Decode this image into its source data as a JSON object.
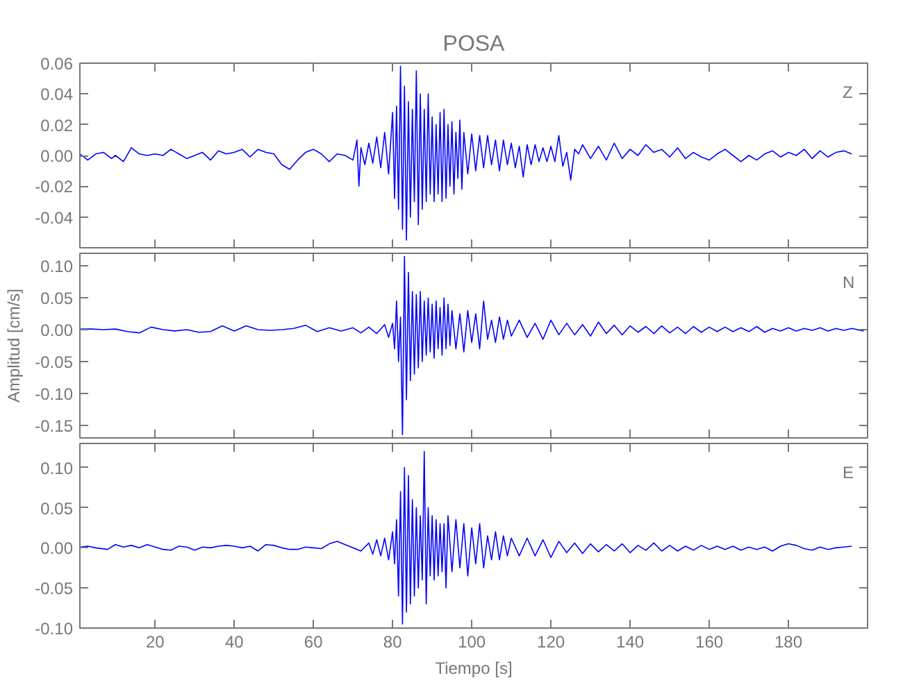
{
  "chart_data": [
    {
      "type": "line",
      "title": "POSA",
      "annotations": [
        "Z"
      ],
      "xlim": [
        1,
        200
      ],
      "xticks": [
        20,
        40,
        60,
        80,
        100,
        120,
        140,
        160,
        180
      ],
      "ylim": [
        -0.06,
        0.06
      ],
      "yticks": [
        {
          "value": -0.06,
          "label": null
        },
        {
          "value": -0.04,
          "label": "-0.04"
        },
        {
          "value": -0.02,
          "label": "-0.02"
        },
        {
          "value": 0,
          "label": "0.00"
        },
        {
          "value": 0.02,
          "label": "0.02"
        },
        {
          "value": 0.04,
          "label": "0.04"
        },
        {
          "value": 0.06,
          "label": "0.06"
        }
      ],
      "tick_labels": "y",
      "grid": false,
      "series": [
        {
          "color": "#0000ff",
          "x": [
            1,
            3,
            5,
            7,
            9,
            10,
            12,
            14,
            16,
            18,
            20,
            22,
            24,
            26,
            28,
            30,
            32,
            34,
            36,
            38,
            40,
            42,
            44,
            46,
            48,
            50,
            52,
            54,
            56,
            58,
            60,
            62,
            64,
            66,
            68,
            70,
            71,
            71.5,
            72,
            73,
            74,
            75,
            76,
            77,
            78,
            79,
            80,
            80.5,
            81,
            81.5,
            82,
            82.5,
            83,
            83.5,
            84,
            84.5,
            85,
            85.5,
            86,
            86.5,
            87,
            87.5,
            88,
            88.5,
            89,
            89.5,
            90,
            90.5,
            91,
            91.5,
            92,
            92.5,
            93,
            93.5,
            94,
            94.5,
            95,
            95.5,
            96,
            96.5,
            97,
            97.5,
            98,
            99,
            100,
            101,
            102,
            103,
            104,
            105,
            106,
            107,
            108,
            109,
            110,
            111,
            112,
            113,
            114,
            115,
            116,
            117,
            118,
            119,
            120,
            121,
            122,
            123,
            124,
            125,
            126,
            127,
            128,
            130,
            132,
            134,
            136,
            138,
            140,
            142,
            144,
            146,
            148,
            150,
            152,
            154,
            156,
            158,
            160,
            162,
            164,
            166,
            168,
            170,
            172,
            174,
            176,
            178,
            180,
            182,
            184,
            186,
            188,
            190,
            192,
            194,
            196
          ],
          "values": [
            0.001,
            -0.003,
            0.001,
            0.002,
            -0.002,
            0.0,
            -0.004,
            0.005,
            0.001,
            0.0,
            0.001,
            0.0,
            0.004,
            0.001,
            -0.002,
            0.0,
            0.002,
            -0.003,
            0.003,
            0.001,
            0.002,
            0.004,
            -0.001,
            0.004,
            0.002,
            0.001,
            -0.006,
            -0.009,
            -0.003,
            0.002,
            0.004,
            0.001,
            -0.004,
            0.001,
            0.0,
            -0.003,
            0.01,
            -0.02,
            0.005,
            -0.006,
            0.008,
            -0.005,
            0.012,
            -0.008,
            0.015,
            -0.012,
            0.028,
            -0.028,
            0.032,
            -0.035,
            0.058,
            -0.048,
            0.045,
            -0.055,
            0.035,
            -0.04,
            0.03,
            -0.03,
            0.055,
            -0.045,
            0.04,
            -0.035,
            0.03,
            -0.03,
            0.04,
            -0.025,
            0.025,
            -0.03,
            0.02,
            -0.025,
            0.028,
            -0.03,
            0.03,
            -0.028,
            0.02,
            -0.02,
            0.022,
            -0.025,
            0.015,
            -0.015,
            0.023,
            -0.022,
            0.015,
            -0.012,
            0.014,
            -0.01,
            0.013,
            -0.008,
            0.013,
            -0.006,
            0.01,
            -0.01,
            0.01,
            -0.006,
            0.008,
            -0.008,
            0.006,
            -0.014,
            0.007,
            -0.006,
            0.007,
            -0.004,
            0.005,
            -0.004,
            0.006,
            -0.004,
            0.013,
            -0.007,
            0.002,
            -0.016,
            0.004,
            0.001,
            0.007,
            -0.002,
            0.006,
            -0.003,
            0.008,
            -0.002,
            0.004,
            0.0,
            0.007,
            0.002,
            0.004,
            -0.001,
            0.005,
            -0.002,
            0.002,
            -0.001,
            -0.003,
            0.001,
            0.004,
            0.0,
            -0.004,
            0.0,
            -0.003,
            0.001,
            0.003,
            -0.001,
            0.002,
            0.0,
            0.004,
            -0.002,
            0.003,
            -0.001,
            0.002,
            0.003,
            0.001
          ]
        }
      ]
    },
    {
      "type": "line",
      "ylabel": "Amplitud [cm/s]",
      "annotations": [
        "N"
      ],
      "xlim": [
        1,
        200
      ],
      "xticks": [
        20,
        40,
        60,
        80,
        100,
        120,
        140,
        160,
        180
      ],
      "ylim": [
        -0.17,
        0.12
      ],
      "yticks": [
        {
          "value": -0.15,
          "label": "-0.15"
        },
        {
          "value": -0.1,
          "label": "-0.10"
        },
        {
          "value": -0.05,
          "label": "-0.05"
        },
        {
          "value": 0,
          "label": "0.00"
        },
        {
          "value": 0.05,
          "label": "0.05"
        },
        {
          "value": 0.1,
          "label": "0.10"
        }
      ],
      "tick_labels": "y",
      "grid": false,
      "series": [
        {
          "color": "#0000ff",
          "x": [
            1,
            4,
            7,
            10,
            13,
            16,
            19,
            22,
            25,
            28,
            31,
            34,
            37,
            40,
            43,
            46,
            49,
            52,
            55,
            58,
            61,
            64,
            67,
            70,
            72,
            74,
            76,
            78,
            79,
            80,
            80.5,
            81,
            81.5,
            82,
            82.5,
            83,
            83.5,
            84,
            84.5,
            85,
            85.5,
            86,
            86.5,
            87,
            87.5,
            88,
            88.5,
            89,
            89.5,
            90,
            90.5,
            91,
            91.5,
            92,
            92.5,
            93,
            93.5,
            94,
            94.5,
            95,
            96,
            97,
            98,
            99,
            100,
            101,
            102,
            103,
            104,
            105,
            106,
            107,
            108,
            109,
            110,
            112,
            114,
            116,
            118,
            120,
            122,
            124,
            126,
            128,
            130,
            132,
            134,
            136,
            138,
            140,
            142,
            144,
            146,
            148,
            150,
            152,
            154,
            156,
            158,
            160,
            162,
            164,
            166,
            168,
            170,
            172,
            174,
            176,
            178,
            180,
            182,
            184,
            186,
            188,
            190,
            192,
            194,
            196,
            199
          ],
          "values": [
            0.001,
            0.001,
            0.0,
            0.001,
            -0.003,
            -0.005,
            0.004,
            0.0,
            -0.002,
            0.0,
            -0.004,
            -0.003,
            0.006,
            -0.002,
            0.006,
            0.0,
            -0.001,
            0.0,
            0.002,
            0.007,
            -0.003,
            0.003,
            -0.002,
            0.003,
            -0.005,
            0.004,
            -0.006,
            0.008,
            -0.012,
            0.01,
            -0.03,
            0.045,
            -0.05,
            0.02,
            -0.165,
            0.115,
            -0.11,
            0.09,
            -0.08,
            0.06,
            -0.07,
            0.055,
            -0.06,
            0.06,
            -0.05,
            0.045,
            -0.04,
            0.05,
            -0.035,
            0.04,
            -0.045,
            0.045,
            -0.03,
            0.035,
            -0.04,
            0.05,
            -0.03,
            0.04,
            -0.025,
            0.03,
            -0.03,
            0.025,
            -0.035,
            0.03,
            -0.02,
            0.025,
            -0.03,
            0.045,
            -0.015,
            0.015,
            -0.02,
            0.02,
            -0.015,
            0.015,
            -0.01,
            0.015,
            -0.012,
            0.01,
            -0.015,
            0.015,
            -0.008,
            0.01,
            -0.008,
            0.008,
            -0.01,
            0.012,
            -0.006,
            0.007,
            -0.008,
            0.006,
            -0.004,
            0.005,
            -0.006,
            0.006,
            -0.005,
            0.004,
            -0.006,
            0.005,
            -0.004,
            0.004,
            -0.003,
            0.004,
            -0.003,
            0.003,
            -0.003,
            0.005,
            -0.004,
            0.002,
            -0.002,
            0.003,
            -0.002,
            0.002,
            -0.001,
            0.003,
            -0.002,
            0.002,
            -0.001,
            0.002,
            -0.002
          ]
        }
      ]
    },
    {
      "type": "line",
      "xlabel": "Tiempo [s]",
      "annotations": [
        "E"
      ],
      "xlim": [
        1,
        200
      ],
      "xticks": [
        20,
        40,
        60,
        80,
        100,
        120,
        140,
        160,
        180
      ],
      "ylim": [
        -0.1,
        0.13
      ],
      "yticks": [
        {
          "value": -0.1,
          "label": "-0.10"
        },
        {
          "value": -0.05,
          "label": "-0.05"
        },
        {
          "value": 0,
          "label": "0.00"
        },
        {
          "value": 0.05,
          "label": "0.05"
        },
        {
          "value": 0.1,
          "label": "0.10"
        }
      ],
      "grid": false,
      "series": [
        {
          "color": "#0000ff",
          "x": [
            1,
            3,
            5,
            8,
            10,
            12,
            14,
            16,
            18,
            20,
            22,
            24,
            26,
            28,
            30,
            32,
            34,
            36,
            38,
            40,
            42,
            44,
            46,
            48,
            50,
            52,
            54,
            56,
            58,
            60,
            62,
            64,
            66,
            68,
            70,
            72,
            74,
            75,
            76,
            77,
            78,
            79,
            80,
            80.5,
            81,
            81.5,
            82,
            82.5,
            83,
            83.5,
            84,
            84.5,
            85,
            85.5,
            86,
            86.5,
            87,
            87.5,
            88,
            88.5,
            89,
            89.5,
            90,
            90.5,
            91,
            91.5,
            92,
            92.5,
            93,
            93.5,
            94,
            95,
            96,
            97,
            98,
            99,
            100,
            101,
            102,
            103,
            104,
            105,
            106,
            107,
            108,
            109,
            110,
            112,
            114,
            116,
            118,
            120,
            122,
            124,
            126,
            128,
            130,
            132,
            134,
            136,
            138,
            140,
            142,
            144,
            146,
            148,
            150,
            152,
            154,
            156,
            158,
            160,
            162,
            164,
            166,
            168,
            170,
            172,
            174,
            176,
            178,
            180,
            182,
            184,
            186,
            188,
            190,
            192,
            194,
            196
          ],
          "values": [
            0.001,
            0.002,
            0.0,
            -0.002,
            0.004,
            0.001,
            0.003,
            0.0,
            0.004,
            0.001,
            -0.002,
            -0.003,
            0.002,
            0.001,
            -0.003,
            0.001,
            0.0,
            0.002,
            0.003,
            0.002,
            0.0,
            0.002,
            -0.004,
            0.004,
            0.003,
            0.0,
            -0.002,
            -0.002,
            0.001,
            0.0,
            -0.001,
            0.005,
            0.008,
            0.004,
            0.0,
            -0.004,
            0.006,
            -0.008,
            0.01,
            -0.01,
            0.012,
            -0.015,
            0.02,
            -0.02,
            0.035,
            -0.06,
            0.07,
            -0.095,
            0.1,
            -0.08,
            0.09,
            -0.07,
            0.06,
            -0.06,
            0.05,
            -0.05,
            0.04,
            -0.04,
            0.12,
            -0.07,
            0.05,
            -0.035,
            0.04,
            -0.04,
            0.035,
            -0.035,
            0.03,
            -0.03,
            0.03,
            -0.05,
            0.04,
            -0.03,
            0.035,
            -0.025,
            0.03,
            -0.035,
            0.025,
            -0.02,
            0.03,
            -0.025,
            0.015,
            -0.015,
            0.02,
            -0.015,
            0.015,
            -0.01,
            0.012,
            -0.01,
            0.012,
            -0.01,
            0.01,
            -0.012,
            0.008,
            -0.006,
            0.006,
            -0.007,
            0.005,
            -0.005,
            0.004,
            -0.004,
            0.005,
            -0.006,
            0.003,
            -0.003,
            0.006,
            -0.004,
            0.003,
            -0.004,
            0.002,
            -0.003,
            0.003,
            -0.002,
            0.002,
            -0.002,
            0.002,
            -0.003,
            0.001,
            -0.002,
            0.001,
            -0.004,
            0.002,
            0.005,
            0.003,
            -0.001,
            -0.003,
            0.001,
            -0.002,
            0.0,
            0.001,
            0.002
          ]
        }
      ]
    }
  ]
}
